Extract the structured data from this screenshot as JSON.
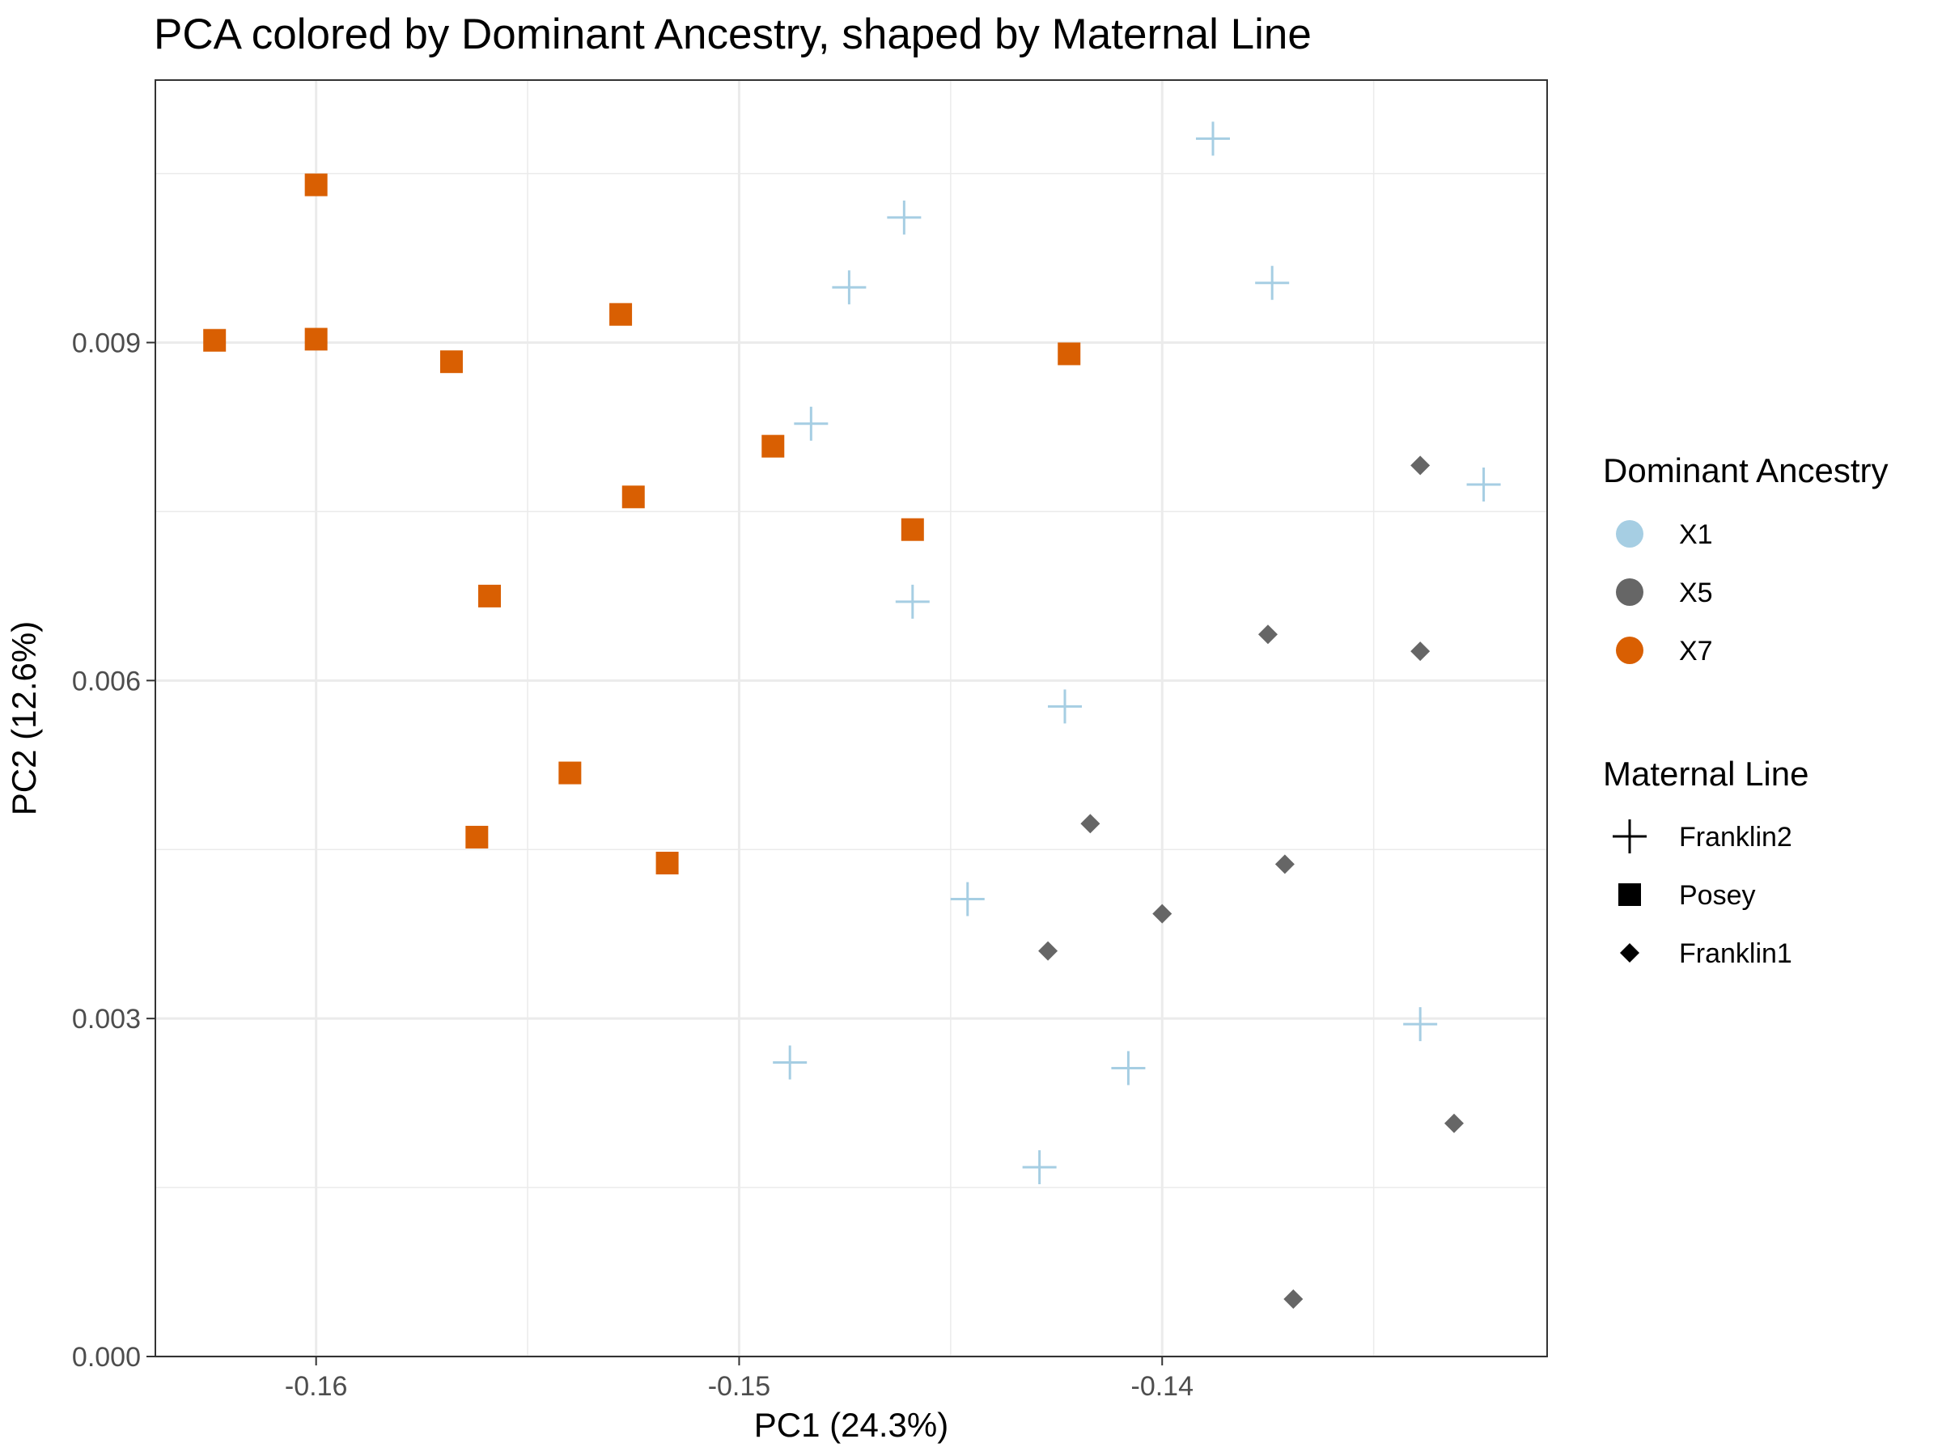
{
  "chart_data": {
    "type": "scatter",
    "title": "PCA colored by Dominant Ancestry, shaped by Maternal Line",
    "xlabel": "PC1 (24.3%)",
    "ylabel": "PC2 (12.6%)",
    "xlim": [
      -0.1638,
      -0.1309
    ],
    "ylim": [
      0.0,
      0.01133
    ],
    "xticks": [
      -0.16,
      -0.15,
      -0.14
    ],
    "xtick_labels": [
      "-0.16",
      "-0.15",
      "-0.14"
    ],
    "xminor": [
      -0.155,
      -0.145,
      -0.135
    ],
    "yticks": [
      0.0,
      0.003,
      0.006,
      0.009
    ],
    "ytick_labels": [
      "0.000",
      "0.003",
      "0.006",
      "0.009"
    ],
    "yminor": [
      0.0015,
      0.0045,
      0.0075,
      0.0105
    ],
    "grid": true,
    "legend_placement": "right",
    "color_legend": {
      "title": "Dominant Ancestry",
      "entries": [
        {
          "label": "X1",
          "color": "#a6cee3"
        },
        {
          "label": "X5",
          "color": "#666666"
        },
        {
          "label": "X7",
          "color": "#d95f02"
        }
      ]
    },
    "shape_legend": {
      "title": "Maternal Line",
      "entries": [
        {
          "label": "Franklin2",
          "shape": "plus"
        },
        {
          "label": "Posey",
          "shape": "square"
        },
        {
          "label": "Franklin1",
          "shape": "diamond"
        }
      ]
    },
    "points": [
      {
        "x": -0.1624,
        "y": 0.00902,
        "ancestry": "X7",
        "line": "Posey"
      },
      {
        "x": -0.16,
        "y": 0.0104,
        "ancestry": "X7",
        "line": "Posey"
      },
      {
        "x": -0.16,
        "y": 0.00903,
        "ancestry": "X7",
        "line": "Posey"
      },
      {
        "x": -0.1568,
        "y": 0.00883,
        "ancestry": "X7",
        "line": "Posey"
      },
      {
        "x": -0.1528,
        "y": 0.00925,
        "ancestry": "X7",
        "line": "Posey"
      },
      {
        "x": -0.1492,
        "y": 0.00808,
        "ancestry": "X7",
        "line": "Posey"
      },
      {
        "x": -0.1525,
        "y": 0.00763,
        "ancestry": "X7",
        "line": "Posey"
      },
      {
        "x": -0.1459,
        "y": 0.00734,
        "ancestry": "X7",
        "line": "Posey"
      },
      {
        "x": -0.1559,
        "y": 0.00675,
        "ancestry": "X7",
        "line": "Posey"
      },
      {
        "x": -0.1422,
        "y": 0.0089,
        "ancestry": "X7",
        "line": "Posey"
      },
      {
        "x": -0.154,
        "y": 0.00518,
        "ancestry": "X7",
        "line": "Posey"
      },
      {
        "x": -0.1562,
        "y": 0.00461,
        "ancestry": "X7",
        "line": "Posey"
      },
      {
        "x": -0.1517,
        "y": 0.00438,
        "ancestry": "X7",
        "line": "Posey"
      },
      {
        "x": -0.1388,
        "y": 0.01081,
        "ancestry": "X1",
        "line": "Franklin2"
      },
      {
        "x": -0.1461,
        "y": 0.01011,
        "ancestry": "X1",
        "line": "Franklin2"
      },
      {
        "x": -0.1474,
        "y": 0.00949,
        "ancestry": "X1",
        "line": "Franklin2"
      },
      {
        "x": -0.1374,
        "y": 0.00953,
        "ancestry": "X1",
        "line": "Franklin2"
      },
      {
        "x": -0.1483,
        "y": 0.00828,
        "ancestry": "X1",
        "line": "Franklin2"
      },
      {
        "x": -0.1459,
        "y": 0.0067,
        "ancestry": "X1",
        "line": "Franklin2"
      },
      {
        "x": -0.1423,
        "y": 0.00577,
        "ancestry": "X1",
        "line": "Franklin2"
      },
      {
        "x": -0.1446,
        "y": 0.00406,
        "ancestry": "X1",
        "line": "Franklin2"
      },
      {
        "x": -0.1488,
        "y": 0.00261,
        "ancestry": "X1",
        "line": "Franklin2"
      },
      {
        "x": -0.1408,
        "y": 0.00256,
        "ancestry": "X1",
        "line": "Franklin2"
      },
      {
        "x": -0.1429,
        "y": 0.00168,
        "ancestry": "X1",
        "line": "Franklin2"
      },
      {
        "x": -0.1339,
        "y": 0.00295,
        "ancestry": "X1",
        "line": "Franklin2"
      },
      {
        "x": -0.1324,
        "y": 0.00774,
        "ancestry": "X1",
        "line": "Franklin2"
      },
      {
        "x": -0.1339,
        "y": 0.00791,
        "ancestry": "X5",
        "line": "Franklin1"
      },
      {
        "x": -0.1375,
        "y": 0.00641,
        "ancestry": "X5",
        "line": "Franklin1"
      },
      {
        "x": -0.1339,
        "y": 0.00626,
        "ancestry": "X5",
        "line": "Franklin1"
      },
      {
        "x": -0.1417,
        "y": 0.00473,
        "ancestry": "X5",
        "line": "Franklin1"
      },
      {
        "x": -0.1371,
        "y": 0.00437,
        "ancestry": "X5",
        "line": "Franklin1"
      },
      {
        "x": -0.14,
        "y": 0.00393,
        "ancestry": "X5",
        "line": "Franklin1"
      },
      {
        "x": -0.1427,
        "y": 0.0036,
        "ancestry": "X5",
        "line": "Franklin1"
      },
      {
        "x": -0.1331,
        "y": 0.00207,
        "ancestry": "X5",
        "line": "Franklin1"
      },
      {
        "x": -0.1369,
        "y": 0.00051,
        "ancestry": "X5",
        "line": "Franklin1"
      }
    ]
  }
}
